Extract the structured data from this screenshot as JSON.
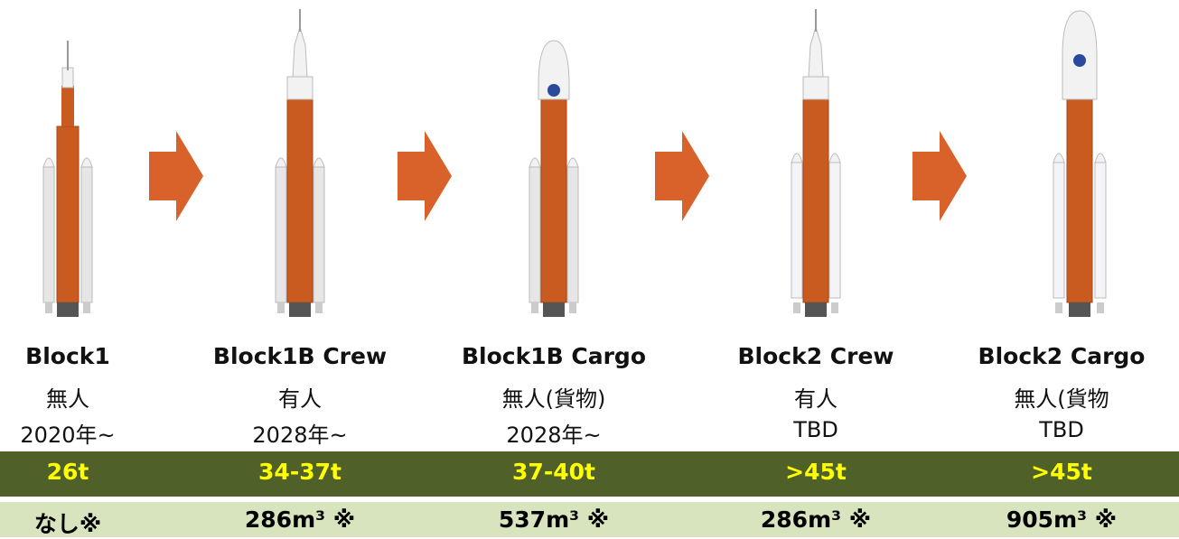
{
  "columns": [
    {
      "name": "Block1",
      "crew": "無人",
      "date": "2020年~",
      "payload": "26t",
      "volume": "なし※"
    },
    {
      "name": "Block1B Crew",
      "crew": "有人",
      "date": "2028年~",
      "payload": "34-37t",
      "volume": "286m³ ※"
    },
    {
      "name": "Block1B Cargo",
      "crew": "無人(貨物)",
      "date": "2028年~",
      "payload": "37-40t",
      "volume": "537m³ ※"
    },
    {
      "name": "Block2 Crew",
      "crew": "有人",
      "date": "TBD",
      "payload": ">45t",
      "volume": "286m³ ※"
    },
    {
      "name": "Block2 Cargo",
      "crew": "無人(貨物",
      "date": "TBD",
      "payload": ">45t",
      "volume": "905m³ ※"
    }
  ]
}
